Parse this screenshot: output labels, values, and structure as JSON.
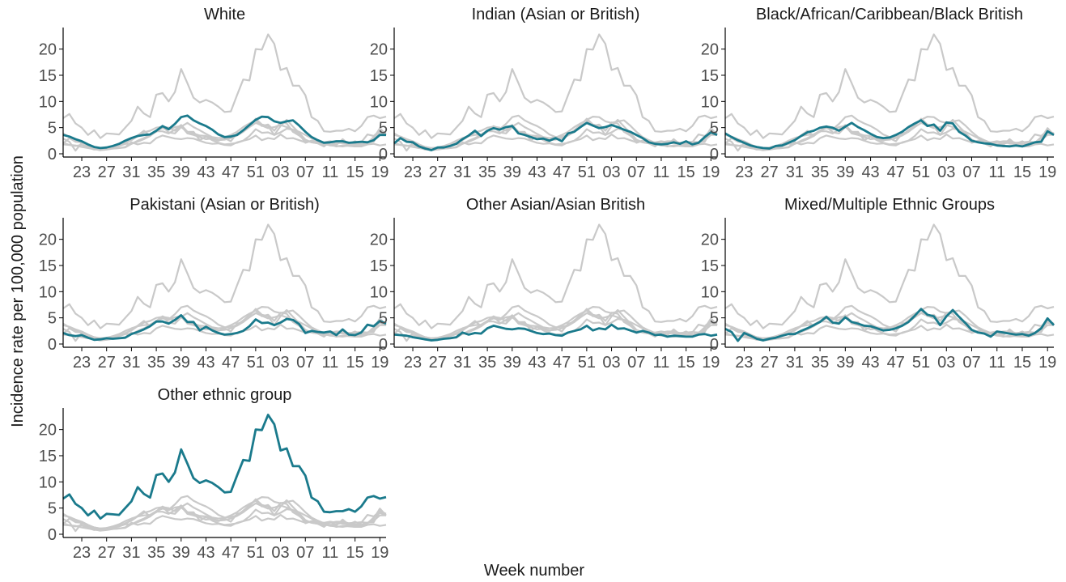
{
  "ylabel": "Incidence rate per 100,000 population",
  "xlabel": "Week number",
  "x_tick_labels": [
    "23",
    "27",
    "31",
    "35",
    "39",
    "43",
    "47",
    "51",
    "03",
    "07",
    "11",
    "15",
    "19"
  ],
  "y_ticks": [
    0,
    5,
    10,
    15,
    20
  ],
  "colors": {
    "highlight": "#1a7a8c",
    "background": "#c9c9c9",
    "axis": "#000000",
    "tick_text": "#4d4d4d"
  },
  "chart_data": {
    "type": "line",
    "layout": "small-multiples",
    "x": [
      20,
      21,
      22,
      23,
      24,
      25,
      26,
      27,
      28,
      29,
      30,
      31,
      32,
      33,
      34,
      35,
      36,
      37,
      38,
      39,
      40,
      41,
      42,
      43,
      44,
      45,
      46,
      47,
      48,
      49,
      50,
      51,
      52,
      53,
      1,
      2,
      3,
      4,
      5,
      6,
      7,
      8,
      9,
      10,
      11,
      12,
      13,
      14,
      15,
      16,
      17,
      18,
      19
    ],
    "ylim": [
      0,
      23.5
    ],
    "grid": false,
    "legend": "none",
    "series": [
      {
        "name": "White",
        "values": [
          3.6,
          3.3,
          2.8,
          2.4,
          1.8,
          1.3,
          1.1,
          1.2,
          1.5,
          1.9,
          2.5,
          3.0,
          3.4,
          3.6,
          3.7,
          4.4,
          5.3,
          4.7,
          5.7,
          7.0,
          7.3,
          6.4,
          5.8,
          5.3,
          4.6,
          3.7,
          3.2,
          3.3,
          3.6,
          4.5,
          5.5,
          6.5,
          7.1,
          7.0,
          6.2,
          5.9,
          6.2,
          6.4,
          5.4,
          4.2,
          3.2,
          2.6,
          2.1,
          2.2,
          2.4,
          2.4,
          2.1,
          2.2,
          2.3,
          2.2,
          2.6,
          3.6,
          3.6
        ]
      },
      {
        "name": "Indian (Asian or British)",
        "values": [
          2.0,
          3.0,
          2.3,
          2.2,
          1.4,
          1.0,
          0.7,
          1.2,
          1.2,
          1.5,
          1.9,
          2.8,
          3.5,
          4.4,
          3.4,
          4.4,
          4.9,
          4.6,
          5.1,
          5.3,
          3.9,
          3.6,
          3.2,
          2.8,
          2.9,
          2.5,
          3.0,
          2.4,
          3.9,
          4.2,
          5.1,
          5.9,
          5.4,
          4.9,
          5.1,
          5.5,
          5.1,
          4.6,
          4.2,
          3.6,
          3.0,
          2.2,
          1.9,
          1.8,
          1.9,
          2.2,
          1.9,
          2.4,
          1.8,
          2.1,
          3.2,
          4.1,
          3.6
        ]
      },
      {
        "name": "Black/African/Caribbean/Black British",
        "values": [
          3.9,
          3.2,
          2.6,
          2.1,
          1.6,
          1.3,
          1.1,
          1.0,
          1.5,
          1.6,
          2.1,
          2.6,
          3.4,
          4.1,
          4.4,
          5.0,
          5.2,
          5.0,
          4.4,
          5.2,
          5.9,
          5.1,
          4.5,
          3.8,
          3.2,
          3.0,
          3.1,
          3.6,
          4.2,
          5.1,
          5.8,
          6.4,
          5.3,
          5.6,
          4.4,
          6.0,
          5.8,
          4.2,
          3.5,
          2.5,
          2.2,
          2.0,
          1.9,
          1.6,
          1.5,
          1.4,
          1.6,
          1.4,
          1.8,
          2.2,
          2.3,
          4.3,
          3.6
        ]
      },
      {
        "name": "Pakistani (Asian or British)",
        "values": [
          2.1,
          1.7,
          1.5,
          1.7,
          1.2,
          0.8,
          0.9,
          1.1,
          1.0,
          1.1,
          1.2,
          1.9,
          2.3,
          2.8,
          3.4,
          4.3,
          4.3,
          3.9,
          4.6,
          5.5,
          4.2,
          4.2,
          2.6,
          3.3,
          2.6,
          2.1,
          1.8,
          1.9,
          2.1,
          2.5,
          3.4,
          4.7,
          4.0,
          4.1,
          3.6,
          4.1,
          4.8,
          4.6,
          3.8,
          2.1,
          2.5,
          2.3,
          2.2,
          2.4,
          1.7,
          2.8,
          1.8,
          1.7,
          2.2,
          3.7,
          3.4,
          4.4,
          3.9
        ]
      },
      {
        "name": "Other Asian/Asian British",
        "values": [
          1.8,
          1.7,
          1.6,
          1.3,
          1.1,
          0.9,
          0.7,
          0.8,
          1.0,
          1.1,
          1.3,
          2.2,
          1.8,
          2.1,
          2.0,
          3.0,
          3.5,
          3.2,
          2.9,
          2.8,
          3.0,
          2.9,
          2.5,
          2.1,
          1.9,
          2.0,
          1.7,
          1.6,
          2.2,
          2.5,
          2.8,
          3.5,
          2.6,
          3.0,
          2.8,
          3.7,
          2.9,
          3.0,
          2.6,
          2.2,
          2.5,
          2.2,
          1.7,
          1.8,
          1.4,
          1.6,
          1.5,
          1.4,
          1.4,
          1.8,
          1.9,
          1.6,
          1.8
        ]
      },
      {
        "name": "Mixed/Multiple Ethnic Groups",
        "values": [
          2.9,
          2.3,
          0.6,
          2.1,
          1.6,
          1.0,
          0.7,
          1.0,
          1.2,
          1.6,
          1.9,
          1.9,
          2.5,
          3.0,
          3.6,
          4.2,
          5.2,
          4.1,
          3.9,
          5.1,
          4.2,
          3.9,
          3.5,
          3.4,
          3.0,
          2.6,
          2.7,
          3.0,
          3.5,
          4.2,
          5.4,
          6.7,
          5.6,
          5.3,
          3.6,
          5.3,
          6.5,
          5.2,
          4.0,
          2.7,
          2.2,
          2.0,
          1.4,
          2.4,
          2.2,
          2.0,
          1.8,
          1.9,
          1.6,
          2.1,
          3.0,
          4.9,
          3.6
        ]
      },
      {
        "name": "Other ethnic group",
        "values": [
          6.8,
          7.6,
          5.8,
          5.0,
          3.6,
          4.5,
          3.0,
          3.9,
          3.8,
          3.7,
          5.0,
          6.3,
          9.0,
          7.7,
          7.0,
          11.3,
          11.6,
          10.0,
          11.8,
          16.2,
          13.5,
          10.7,
          9.8,
          10.3,
          9.8,
          9.0,
          8.0,
          8.1,
          11.2,
          14.2,
          14.0,
          20.0,
          19.9,
          22.8,
          21.0,
          16.0,
          16.4,
          13.0,
          13.0,
          11.2,
          7.0,
          6.3,
          4.3,
          4.2,
          4.4,
          4.4,
          4.8,
          4.3,
          5.3,
          7.0,
          7.3,
          6.8,
          7.1
        ]
      }
    ]
  }
}
